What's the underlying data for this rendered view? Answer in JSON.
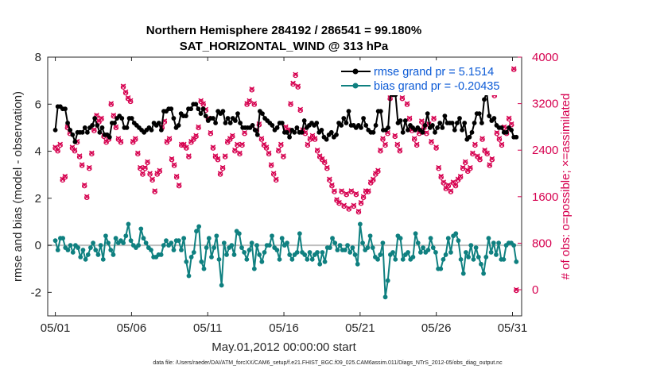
{
  "chart_data": {
    "type": "line",
    "title": "Northern Hemisphere 284192 / 286541 = 99.180%",
    "subtitle": "SAT_HORIZONTAL_WIND @ 313 hPa",
    "xlabel": "May.01,2012 00:00:00 start",
    "ylabel": "rmse and bias (model - observation)",
    "ylabel_right": "# of obs: o=possible; ×=assimilated",
    "footer": "data file: /Users/raeder/DAI/ATM_forcXX/CAM6_setup/f.e21.FHIST_BGC.f09_025.CAM6assim.011/Diags_NTrS_2012-05/obs_diag_output.nc",
    "xlim": [
      0.5,
      31.6
    ],
    "ylim": [
      -3,
      8
    ],
    "ylim_right": [
      -450,
      4000
    ],
    "x_ticks": [
      1,
      6,
      11,
      16,
      21,
      26,
      31
    ],
    "x_tick_labels": [
      "05/01",
      "05/06",
      "05/11",
      "05/16",
      "05/21",
      "05/26",
      "05/31"
    ],
    "y_ticks": [
      -2,
      0,
      2,
      4,
      6,
      8
    ],
    "y_tick_labels": [
      "-2",
      "0",
      "2",
      "4",
      "6",
      "8"
    ],
    "y_right_ticks": [
      0,
      800,
      1600,
      2400,
      3200,
      4000
    ],
    "y_right_tick_labels": [
      "0",
      "800",
      "1600",
      "2400",
      "3200",
      "4000"
    ],
    "colors": {
      "rmse": "#000000",
      "bias": "#0f8080",
      "obs": "#d6004f",
      "zero_line": "#bfbfbf",
      "legend_text": "#0b5ad6"
    },
    "legend": [
      {
        "name": "rmse grand pr = 5.1514",
        "series": "rmse"
      },
      {
        "name": "bias grand pr = -0.20435",
        "series": "bias"
      }
    ],
    "series": [
      {
        "name": "rmse",
        "axis": "left",
        "values": [
          4.9,
          5.9,
          5.9,
          5.8,
          5.8,
          5.2,
          4.9,
          4.7,
          4.4,
          4.8,
          4.8,
          4.8,
          5.0,
          4.8,
          5.0,
          5.1,
          5.4,
          5.1,
          4.8,
          5.0,
          4.7,
          4.7,
          4.6,
          5.2,
          5.2,
          5.4,
          5.5,
          5.4,
          5.0,
          5.0,
          5.4,
          5.4,
          5.2,
          5.1,
          5.0,
          4.9,
          4.8,
          4.9,
          5.0,
          4.9,
          5.2,
          5.1,
          5.2,
          4.9,
          5.7,
          5.7,
          5.8,
          5.8,
          5.4,
          5.0,
          5.1,
          5.6,
          5.5,
          5.5,
          5.8,
          5.8,
          6.0,
          6.0,
          5.8,
          5.6,
          5.8,
          5.5,
          5.3,
          5.4,
          5.4,
          5.2,
          5.7,
          5.6,
          5.7,
          5.2,
          5.4,
          5.2,
          5.4,
          5.3,
          5.6,
          5.2,
          5.0,
          5.0,
          5.0,
          5.0,
          5.1,
          4.9,
          4.7,
          5.7,
          5.6,
          5.4,
          5.3,
          5.2,
          5.1,
          4.9,
          5.0,
          5.2,
          5.2,
          4.8,
          4.8,
          4.6,
          4.9,
          4.8,
          5.0,
          4.8,
          4.8,
          5.3,
          5.0,
          5.1,
          5.2,
          5.1,
          5.2,
          4.8,
          4.9,
          4.6,
          4.5,
          4.7,
          4.8,
          4.6,
          4.7,
          5.2,
          5.1,
          5.4,
          5.2,
          5.7,
          5.1,
          5.1,
          5.0,
          5.1,
          5.0,
          5.4,
          5.1,
          4.9,
          4.8,
          4.8,
          5.1,
          5.7,
          5.7,
          4.9,
          4.9,
          5.0,
          6.5,
          6.4,
          6.4,
          5.2,
          5.3,
          4.8,
          5.3,
          4.9,
          5.1,
          5.0,
          4.9,
          5.0,
          4.9,
          4.8,
          5.1,
          5.6,
          5.0,
          5.1,
          4.8,
          5.0,
          5.2,
          5.0,
          5.5,
          5.2,
          5.2,
          5.2,
          4.9,
          5.2,
          5.4,
          4.9,
          5.2,
          4.5,
          4.6,
          4.8,
          5.2,
          5.6,
          5.6,
          5.2,
          6.2,
          6.5,
          5.5,
          5.3,
          5.4,
          5.1,
          5.0,
          5.0,
          4.8,
          4.8,
          5.0,
          4.9,
          4.6,
          4.6
        ]
      },
      {
        "name": "bias",
        "axis": "left",
        "values": [
          0.2,
          -0.2,
          0.3,
          0.3,
          -0.1,
          -0.2,
          0.0,
          -0.3,
          0.0,
          -0.1,
          -0.5,
          -0.2,
          -0.6,
          -0.4,
          -0.1,
          0.1,
          -0.2,
          -0.4,
          0.0,
          -0.6,
          0.4,
          0.1,
          -0.2,
          -0.4,
          0.3,
          0.1,
          0.2,
          0.1,
          0.4,
          0.9,
          0.2,
          0.0,
          -0.1,
          0.0,
          0.7,
          0.3,
          0.1,
          -0.1,
          -0.2,
          -0.5,
          -0.5,
          -0.4,
          -0.4,
          0.0,
          0.2,
          0.0,
          0.1,
          -0.2,
          0.2,
          0.2,
          -0.2,
          0.3,
          -0.7,
          -1.3,
          -0.5,
          -0.3,
          0.6,
          0.8,
          -0.7,
          -1.0,
          -0.1,
          0.3,
          -0.5,
          -0.1,
          0.4,
          -0.6,
          -1.7,
          0.1,
          -0.4,
          -0.1,
          0.0,
          -0.4,
          0.6,
          0.5,
          -0.1,
          -0.3,
          -0.6,
          -0.2,
          0.1,
          -1.0,
          0.0,
          -0.4,
          -0.7,
          -0.3,
          0.0,
          0.0,
          0.4,
          -0.1,
          -0.2,
          -0.6,
          0.3,
          0.0,
          0.1,
          -0.4,
          -0.6,
          -0.4,
          -0.3,
          0.5,
          -0.3,
          -0.4,
          -0.6,
          -0.3,
          -0.6,
          -0.4,
          -0.3,
          -0.8,
          -0.3,
          -0.7,
          -0.1,
          -0.1,
          0.3,
          0.1,
          -0.2,
          0.0,
          -0.2,
          -0.2,
          0.0,
          -0.3,
          -0.1,
          -0.4,
          -0.8,
          0.9,
          0.1,
          -0.2,
          -0.1,
          0.4,
          -0.1,
          -0.5,
          -0.6,
          -0.4,
          0.1,
          -2.2,
          -1.5,
          -0.4,
          -0.3,
          -0.6,
          0.4,
          0.3,
          -0.6,
          -0.4,
          -0.3,
          -0.6,
          -0.5,
          0.5,
          0.1,
          -0.3,
          -0.1,
          -0.3,
          -0.2,
          0.3,
          -0.1,
          -0.3,
          -1.0,
          -1.0,
          -0.6,
          -0.4,
          0.3,
          -0.3,
          0.4,
          0.5,
          0.2,
          -0.6,
          -1.2,
          -0.3,
          -0.5,
          0.0,
          -0.6,
          -0.1,
          -0.5,
          -0.8,
          -1.2,
          -0.5,
          0.3,
          -0.3,
          0.1,
          -0.4,
          0.1,
          -0.6,
          -0.6,
          0.0,
          0.1,
          0.1,
          0.0,
          -0.7
        ]
      },
      {
        "name": "obs_count",
        "axis": "right",
        "values": [
          2450,
          2400,
          2500,
          1900,
          1950,
          2800,
          2700,
          2450,
          2400,
          2550,
          2300,
          2150,
          1800,
          1600,
          2100,
          2350,
          2750,
          3000,
          2900,
          2950,
          2650,
          2550,
          2600,
          3200,
          3000,
          2800,
          2600,
          2550,
          3500,
          3400,
          3300,
          3250,
          2550,
          2600,
          2350,
          2100,
          2000,
          2100,
          2200,
          2000,
          1900,
          1700,
          2000,
          2050,
          2800,
          2900,
          2550,
          2600,
          2250,
          2150,
          1950,
          1800,
          2500,
          2500,
          2450,
          2300,
          2550,
          2600,
          2650,
          2800,
          3250,
          3200,
          3100,
          2950,
          2700,
          2450,
          2300,
          2250,
          2000,
          2100,
          2300,
          2550,
          2600,
          2650,
          2400,
          2500,
          2350,
          2500,
          2700,
          3200,
          3250,
          3450,
          3200,
          2750,
          2850,
          2600,
          2500,
          2450,
          2350,
          2150,
          2000,
          1900,
          2400,
          2500,
          2300,
          2800,
          2750,
          3200,
          3550,
          3700,
          3500,
          3100,
          2750,
          2700,
          2500,
          2600,
          2650,
          2600,
          2400,
          2300,
          2250,
          2200,
          2100,
          1900,
          1800,
          1700,
          1550,
          1500,
          1700,
          1450,
          1650,
          1400,
          1700,
          1450,
          1650,
          1350,
          1500,
          1600,
          1700,
          1700,
          1850,
          1900,
          2000,
          2050,
          2400,
          2600,
          2500,
          2700,
          3300,
          3400,
          2650,
          2500,
          2400,
          3300,
          3400,
          3200,
          2950,
          2750,
          2600,
          2500,
          2700,
          2900,
          2800,
          2700,
          2850,
          2550,
          2950,
          2450,
          2100,
          1950,
          1850,
          1750,
          1800,
          1700,
          1850,
          1800,
          1900,
          1950,
          2100,
          2200,
          2050,
          2100,
          2350,
          2500,
          2300,
          2250,
          2600,
          2400,
          2350,
          2150,
          2250,
          3350,
          2700,
          2600,
          2500,
          2800,
          2700,
          2950,
          2850,
          3800,
          0
        ]
      }
    ]
  }
}
